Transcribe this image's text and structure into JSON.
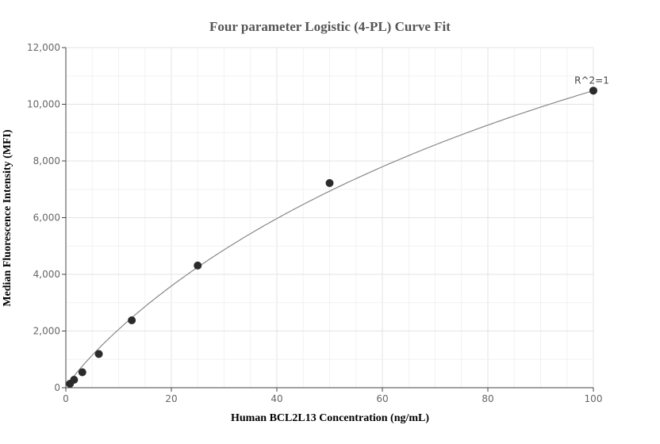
{
  "chart_data": {
    "type": "scatter",
    "title": "Four parameter Logistic (4-PL) Curve Fit",
    "xlabel": "Human BCL2L13 Concentration (ng/mL)",
    "ylabel": "Median Fluorescence Intensity (MFI)",
    "xlim": [
      0,
      100
    ],
    "ylim": [
      0,
      12000
    ],
    "xticks": [
      "0",
      "20",
      "40",
      "60",
      "80",
      "100"
    ],
    "yticks": [
      "0",
      "2,000",
      "4,000",
      "6,000",
      "8,000",
      "10,000",
      "12,000"
    ],
    "grid": true,
    "points": {
      "x": [
        0.78,
        1.56,
        3.125,
        6.25,
        12.5,
        25,
        50,
        100
      ],
      "y": [
        140,
        280,
        545,
        1190,
        2378,
        4310,
        7220,
        10480
      ]
    },
    "fit": "4-PL curve",
    "annotation": "R^2=1",
    "colors": {
      "points": "#2b2b2b",
      "curve": "#888888",
      "grid": "#e6e6e6"
    }
  }
}
